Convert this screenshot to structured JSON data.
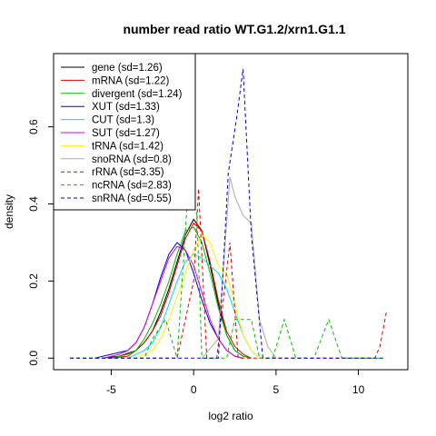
{
  "chart_data": {
    "type": "line",
    "title": "number read ratio WT.G1.2/xrn1.G1.1",
    "xlabel": "log2 ratio",
    "ylabel": "density",
    "xlim": [
      -8.5,
      13
    ],
    "ylim": [
      -0.03,
      0.79
    ],
    "xticks": [
      -5,
      0,
      5,
      10
    ],
    "yticks": [
      0.0,
      0.2,
      0.4,
      0.6
    ],
    "ytick_labels": [
      "0.0",
      "0.2",
      "0.4",
      "0.6"
    ],
    "grid": false,
    "legend_position": "top-left",
    "series": [
      {
        "name": "gene (sd=1.26)",
        "color": "#000000",
        "dashed": false,
        "x": [
          -5.5,
          -4.5,
          -3.5,
          -3,
          -2.5,
          -2,
          -1.5,
          -1,
          -0.5,
          0,
          0.5,
          1,
          1.5,
          2,
          2.5,
          3,
          3.5
        ],
        "y": [
          0,
          0.005,
          0.02,
          0.04,
          0.07,
          0.12,
          0.18,
          0.25,
          0.32,
          0.36,
          0.33,
          0.24,
          0.14,
          0.06,
          0.02,
          0.005,
          0
        ]
      },
      {
        "name": "mRNA (sd=1.22)",
        "color": "#dd0000",
        "dashed": false,
        "x": [
          -5,
          -4,
          -3.5,
          -3,
          -2.5,
          -2,
          -1.5,
          -1,
          -0.5,
          0,
          0.5,
          1,
          1.5,
          2,
          2.5,
          3,
          3.5
        ],
        "y": [
          0,
          0.005,
          0.02,
          0.04,
          0.07,
          0.11,
          0.17,
          0.24,
          0.31,
          0.35,
          0.33,
          0.25,
          0.15,
          0.07,
          0.03,
          0.01,
          0
        ]
      },
      {
        "name": "divergent (sd=1.24)",
        "color": "#00bb00",
        "dashed": false,
        "x": [
          -5,
          -4,
          -3.5,
          -3,
          -2.5,
          -2,
          -1.5,
          -1,
          -0.5,
          0,
          0.5,
          1,
          1.5,
          2,
          2.5,
          3,
          3.5
        ],
        "y": [
          0,
          0.01,
          0.02,
          0.05,
          0.09,
          0.14,
          0.2,
          0.27,
          0.33,
          0.34,
          0.3,
          0.22,
          0.13,
          0.06,
          0.02,
          0.005,
          0
        ]
      },
      {
        "name": "XUT (sd=1.33)",
        "color": "#0000dd",
        "dashed": false,
        "x": [
          -6,
          -5,
          -4.5,
          -4,
          -3.5,
          -3,
          -2.5,
          -2,
          -1.5,
          -1,
          -0.5,
          0,
          0.5,
          1,
          1.5,
          2,
          2.5,
          3
        ],
        "y": [
          0,
          0.01,
          0.015,
          0.02,
          0.04,
          0.08,
          0.14,
          0.21,
          0.27,
          0.3,
          0.28,
          0.22,
          0.15,
          0.09,
          0.05,
          0.02,
          0.005,
          0
        ]
      },
      {
        "name": "CUT (sd=1.3)",
        "color": "#00dddd",
        "dashed": false,
        "x": [
          -4,
          -3,
          -2.5,
          -2,
          -1.5,
          -1,
          -0.5,
          0,
          0.5,
          1,
          1.5,
          2,
          2.5,
          3,
          3.5,
          4
        ],
        "y": [
          0,
          0.02,
          0.04,
          0.08,
          0.14,
          0.2,
          0.25,
          0.27,
          0.26,
          0.24,
          0.22,
          0.18,
          0.12,
          0.06,
          0.02,
          0
        ]
      },
      {
        "name": "SUT (sd=1.27)",
        "color": "#dd00dd",
        "dashed": false,
        "x": [
          -5.5,
          -4.5,
          -4,
          -3.5,
          -3,
          -2.5,
          -2,
          -1.5,
          -1,
          -0.5,
          0,
          0.5,
          1,
          1.5,
          2,
          2.5,
          3
        ],
        "y": [
          0,
          0.01,
          0.02,
          0.04,
          0.08,
          0.14,
          0.2,
          0.26,
          0.29,
          0.28,
          0.24,
          0.17,
          0.1,
          0.05,
          0.02,
          0.005,
          0
        ]
      },
      {
        "name": "tRNA (sd=1.42)",
        "color": "#ffee00",
        "dashed": false,
        "x": [
          -3.5,
          -2.5,
          -2,
          -1.5,
          -1,
          -0.5,
          0,
          0.5,
          1,
          1.5,
          2,
          2.5,
          3,
          3.5,
          4
        ],
        "y": [
          0,
          0.02,
          0.05,
          0.1,
          0.16,
          0.22,
          0.28,
          0.32,
          0.3,
          0.24,
          0.22,
          0.14,
          0.06,
          0.02,
          0
        ]
      },
      {
        "name": "snoRNA (sd=0.8)",
        "color": "#aaaaaa",
        "dashed": false,
        "x": [
          0.5,
          1.5,
          2.2,
          2.5,
          3,
          3.5,
          4,
          4.5,
          5
        ],
        "y": [
          0,
          0.05,
          0.47,
          0.42,
          0.37,
          0.35,
          0.1,
          0.03,
          0
        ]
      },
      {
        "name": "rRNA (sd=3.35)",
        "color": "#dd0000",
        "dashed": true,
        "x": [
          -7.5,
          -3.5,
          -1,
          0,
          0.3,
          0.8,
          1.4,
          2.2,
          2.7,
          11,
          11.3,
          11.7
        ],
        "y": [
          0,
          0,
          0,
          0.2,
          0.44,
          0,
          0,
          0.3,
          0,
          0,
          0.03,
          0.12
        ]
      },
      {
        "name": "ncRNA (sd=2.83)",
        "color": "#00bb00",
        "dashed": true,
        "x": [
          -7.5,
          -3,
          -2.5,
          -1.7,
          -1,
          -0.3,
          0.2,
          0.5,
          1,
          2,
          2.5,
          3.5,
          4,
          4.8,
          5.5,
          6.2,
          7.3,
          8.2,
          9,
          10,
          11.5
        ],
        "y": [
          0,
          0,
          0.05,
          0.1,
          0,
          0.46,
          0.37,
          0,
          0,
          0,
          0.1,
          0.1,
          0,
          0,
          0.1,
          0,
          0,
          0.1,
          0,
          0,
          0
        ]
      },
      {
        "name": "snRNA (sd=0.55)",
        "color": "#0000dd",
        "dashed": true,
        "x": [
          -7.5,
          0.5,
          1.5,
          2.1,
          2.6,
          3,
          3.5,
          4.2,
          11.5
        ],
        "y": [
          0,
          0,
          0,
          0.48,
          0.62,
          0.75,
          0.32,
          0,
          0
        ]
      }
    ]
  }
}
